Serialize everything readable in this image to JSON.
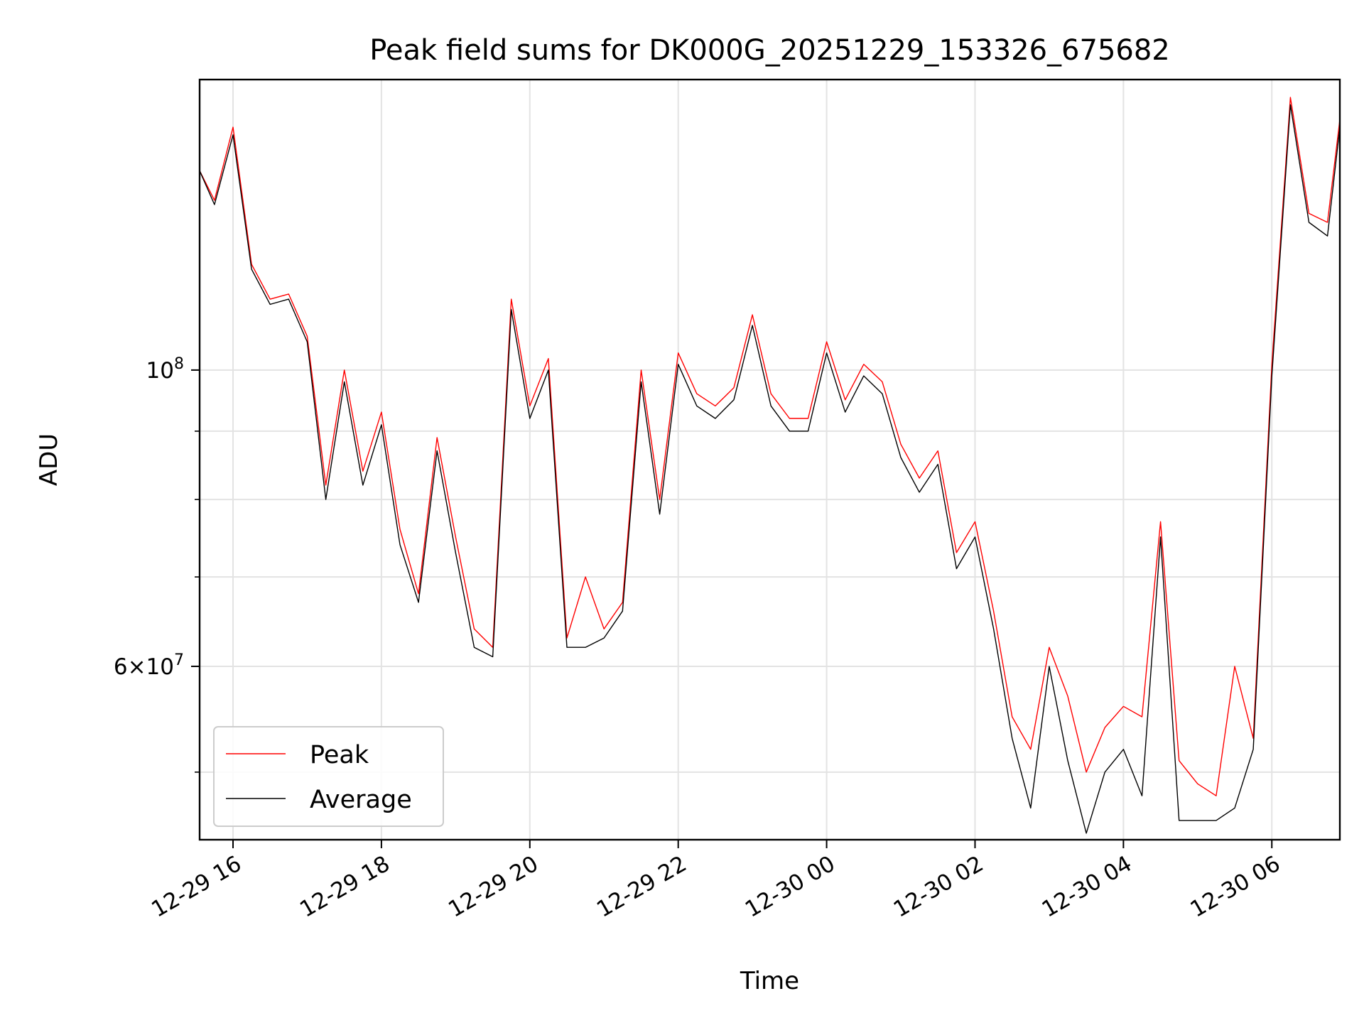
{
  "chart_data": {
    "type": "line",
    "title": "Peak field sums for DK000G_20251229_153326_675682",
    "xlabel": "Time",
    "ylabel": "ADU",
    "y_scale": "log",
    "ylim": [
      44500000,
      165000000
    ],
    "xlim": [
      "2025-12-29 15:33",
      "2025-12-30 06:55"
    ],
    "x_ticks": [
      "12-29 16",
      "12-29 18",
      "12-29 20",
      "12-29 22",
      "12-30 00",
      "12-30 02",
      "12-30 04",
      "12-30 06"
    ],
    "y_major_ticks": [
      {
        "value": 60000000,
        "base": "6",
        "exp": "7",
        "has_mantissa": true
      },
      {
        "value": 100000000,
        "base": "10",
        "exp": "8",
        "has_mantissa": false
      }
    ],
    "grid": true,
    "legend_position": "lower-left",
    "x": [
      "2025-12-29 15:33",
      "2025-12-29 15:45",
      "2025-12-29 16:00",
      "2025-12-29 16:15",
      "2025-12-29 16:30",
      "2025-12-29 16:45",
      "2025-12-29 17:00",
      "2025-12-29 17:15",
      "2025-12-29 17:30",
      "2025-12-29 17:45",
      "2025-12-29 18:00",
      "2025-12-29 18:15",
      "2025-12-29 18:30",
      "2025-12-29 18:45",
      "2025-12-29 19:00",
      "2025-12-29 19:15",
      "2025-12-29 19:30",
      "2025-12-29 19:45",
      "2025-12-29 20:00",
      "2025-12-29 20:15",
      "2025-12-29 20:30",
      "2025-12-29 20:45",
      "2025-12-29 21:00",
      "2025-12-29 21:15",
      "2025-12-29 21:30",
      "2025-12-29 21:45",
      "2025-12-29 22:00",
      "2025-12-29 22:15",
      "2025-12-29 22:30",
      "2025-12-29 22:45",
      "2025-12-29 23:00",
      "2025-12-29 23:15",
      "2025-12-29 23:30",
      "2025-12-29 23:45",
      "2025-12-30 00:00",
      "2025-12-30 00:15",
      "2025-12-30 00:30",
      "2025-12-30 00:45",
      "2025-12-30 01:00",
      "2025-12-30 01:15",
      "2025-12-30 01:30",
      "2025-12-30 01:45",
      "2025-12-30 02:00",
      "2025-12-30 02:15",
      "2025-12-30 02:30",
      "2025-12-30 02:45",
      "2025-12-30 03:00",
      "2025-12-30 03:15",
      "2025-12-30 03:30",
      "2025-12-30 03:45",
      "2025-12-30 04:00",
      "2025-12-30 04:15",
      "2025-12-30 04:30",
      "2025-12-30 04:45",
      "2025-12-30 05:00",
      "2025-12-30 05:15",
      "2025-12-30 05:30",
      "2025-12-30 05:45",
      "2025-12-30 06:00",
      "2025-12-30 06:15",
      "2025-12-30 06:30",
      "2025-12-30 06:45",
      "2025-12-30 06:55"
    ],
    "series": [
      {
        "name": "Peak",
        "color": "#ff0000",
        "values": [
          141000000,
          134000000,
          152000000,
          120000000,
          113000000,
          114000000,
          106000000,
          82000000,
          100000000,
          84000000,
          93000000,
          76000000,
          68000000,
          89000000,
          75000000,
          64000000,
          62000000,
          113000000,
          94000000,
          102000000,
          63000000,
          70000000,
          64000000,
          67000000,
          100000000,
          80000000,
          103000000,
          96000000,
          94000000,
          97000000,
          110000000,
          96000000,
          92000000,
          92000000,
          105000000,
          95000000,
          101000000,
          98000000,
          88000000,
          83000000,
          87000000,
          73000000,
          77000000,
          66000000,
          55000000,
          52000000,
          62000000,
          57000000,
          50000000,
          54000000,
          56000000,
          55000000,
          77000000,
          51000000,
          49000000,
          48000000,
          60000000,
          53000000,
          101000000,
          160000000,
          131000000,
          129000000,
          154000000
        ]
      },
      {
        "name": "Average",
        "color": "#000000",
        "values": [
          141000000,
          133000000,
          150000000,
          119000000,
          112000000,
          113000000,
          105000000,
          80000000,
          98000000,
          82000000,
          91000000,
          74000000,
          67000000,
          87000000,
          73000000,
          62000000,
          61000000,
          111000000,
          92000000,
          100000000,
          62000000,
          62000000,
          63000000,
          66000000,
          98000000,
          78000000,
          101000000,
          94000000,
          92000000,
          95000000,
          108000000,
          94000000,
          90000000,
          90000000,
          103000000,
          93000000,
          99000000,
          96000000,
          86000000,
          81000000,
          85000000,
          71000000,
          75000000,
          64000000,
          53000000,
          47000000,
          60000000,
          51000000,
          45000000,
          50000000,
          52000000,
          48000000,
          75000000,
          46000000,
          46000000,
          46000000,
          47000000,
          52000000,
          99000000,
          158000000,
          129000000,
          126000000,
          152000000
        ]
      }
    ]
  }
}
